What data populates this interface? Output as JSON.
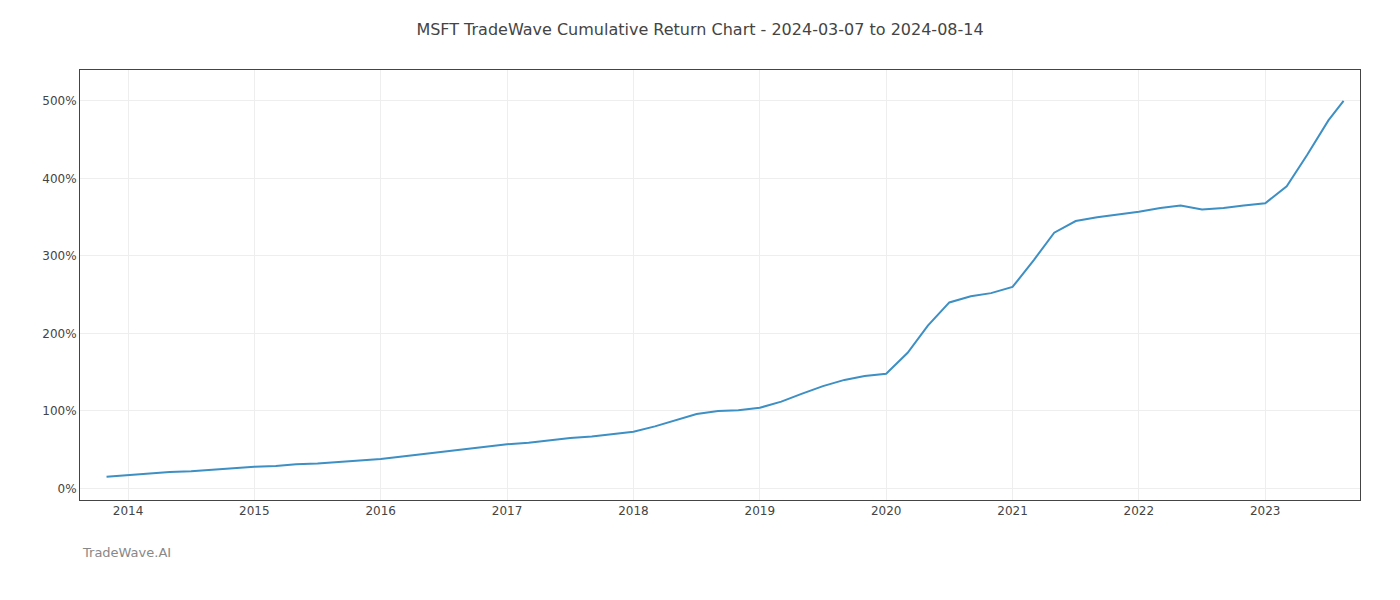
{
  "chart_data": {
    "type": "line",
    "title": "MSFT TradeWave Cumulative Return Chart - 2024-03-07 to 2024-08-14",
    "annotations": [
      "TradeWave.AI"
    ],
    "x": [
      2013.83,
      2014.0,
      2014.17,
      2014.33,
      2014.5,
      2014.67,
      2014.83,
      2015.0,
      2015.17,
      2015.33,
      2015.5,
      2015.67,
      2015.83,
      2016.0,
      2016.17,
      2016.33,
      2016.5,
      2016.67,
      2016.83,
      2017.0,
      2017.17,
      2017.33,
      2017.5,
      2017.67,
      2017.83,
      2018.0,
      2018.17,
      2018.33,
      2018.5,
      2018.67,
      2018.83,
      2019.0,
      2019.17,
      2019.33,
      2019.5,
      2019.67,
      2019.83,
      2020.0,
      2020.17,
      2020.33,
      2020.5,
      2020.67,
      2020.83,
      2021.0,
      2021.17,
      2021.33,
      2021.5,
      2021.67,
      2021.83,
      2022.0,
      2022.17,
      2022.33,
      2022.5,
      2022.67,
      2022.83,
      2023.0,
      2023.17,
      2023.33,
      2023.5,
      2023.62
    ],
    "values": [
      15,
      17,
      19,
      21,
      22,
      24,
      26,
      28,
      29,
      31,
      32,
      34,
      36,
      38,
      41,
      44,
      47,
      50,
      53,
      57,
      59,
      62,
      65,
      67,
      70,
      73,
      80,
      88,
      96,
      100,
      101,
      104,
      112,
      122,
      132,
      140,
      145,
      148,
      175,
      210,
      240,
      248,
      252,
      260,
      295,
      330,
      345,
      350,
      353,
      357,
      362,
      365,
      360,
      362,
      365,
      368,
      390,
      430,
      475,
      500
    ],
    "color": "#3d8fc4",
    "xlim": [
      2013.62,
      2023.75
    ],
    "xticks": [
      2014,
      2015,
      2016,
      2017,
      2018,
      2019,
      2020,
      2021,
      2022,
      2023
    ],
    "ylim": [
      -15,
      540
    ],
    "yticks": [
      {
        "value": 0,
        "label": "0%"
      },
      {
        "value": 100,
        "label": "100%"
      },
      {
        "value": 200,
        "label": "200%"
      },
      {
        "value": 300,
        "label": "300%"
      },
      {
        "value": 400,
        "label": "400%"
      },
      {
        "value": 500,
        "label": "500%"
      }
    ],
    "grid": true
  }
}
